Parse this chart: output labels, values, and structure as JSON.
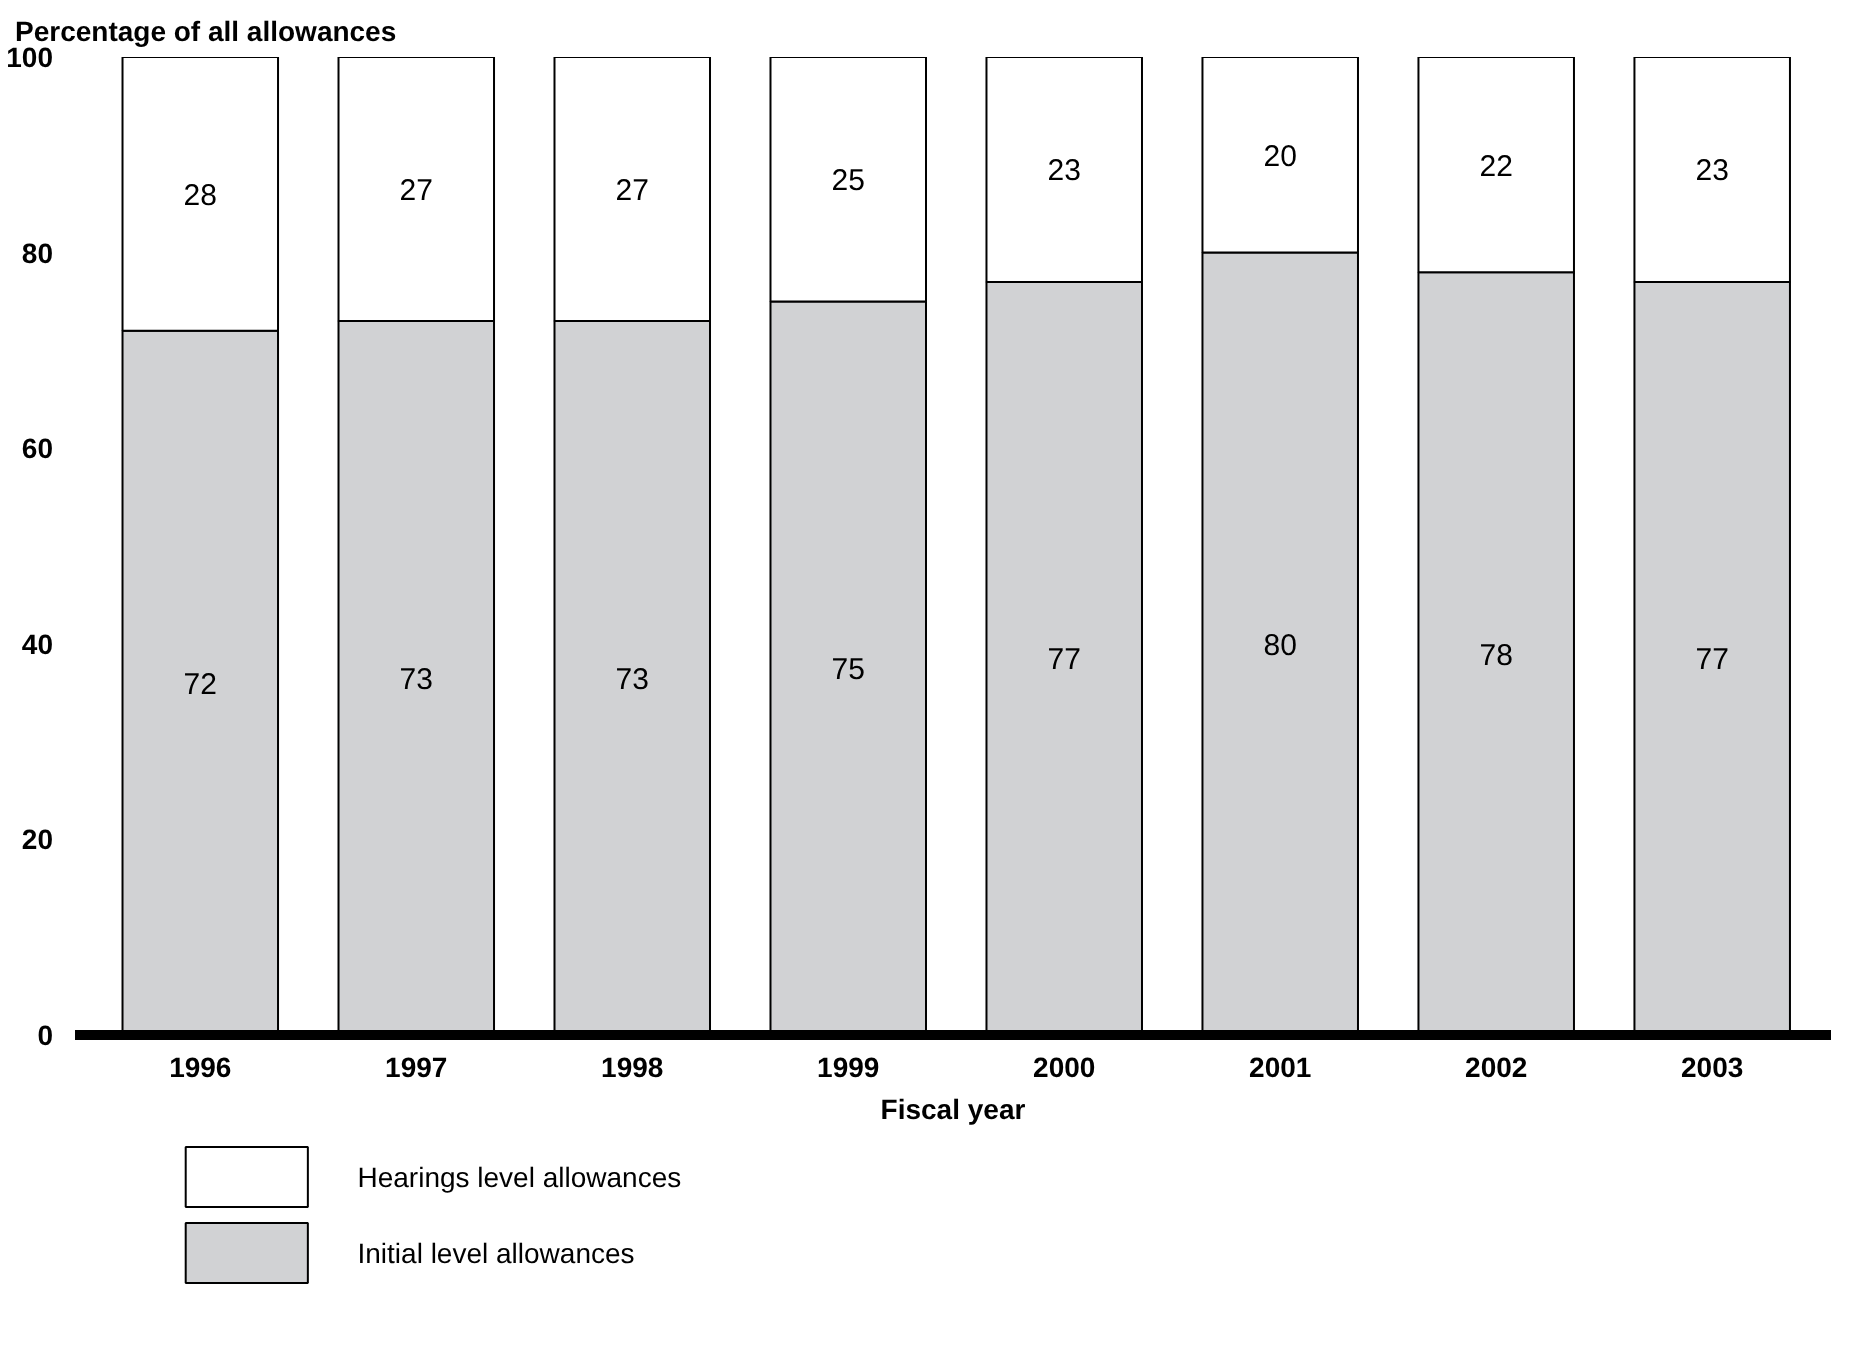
{
  "chart_data": {
    "type": "bar",
    "ylabel": "Percentage of all allowances",
    "xlabel": "Fiscal year",
    "categories": [
      "1996",
      "1997",
      "1998",
      "1999",
      "2000",
      "2001",
      "2002",
      "2003"
    ],
    "stacked": true,
    "data_labels": true,
    "ylim": [
      0,
      100
    ],
    "yticks": [
      0,
      20,
      40,
      60,
      80,
      100
    ],
    "grid": false,
    "legend": "bottom left",
    "series": [
      {
        "name": "Initial level allowances",
        "color": "#d1d2d4",
        "values": [
          72,
          73,
          73,
          75,
          77,
          80,
          78,
          77
        ]
      },
      {
        "name": "Hearings level allowances",
        "color": "#ffffff",
        "values": [
          28,
          27,
          27,
          25,
          23,
          20,
          22,
          23
        ]
      }
    ]
  }
}
